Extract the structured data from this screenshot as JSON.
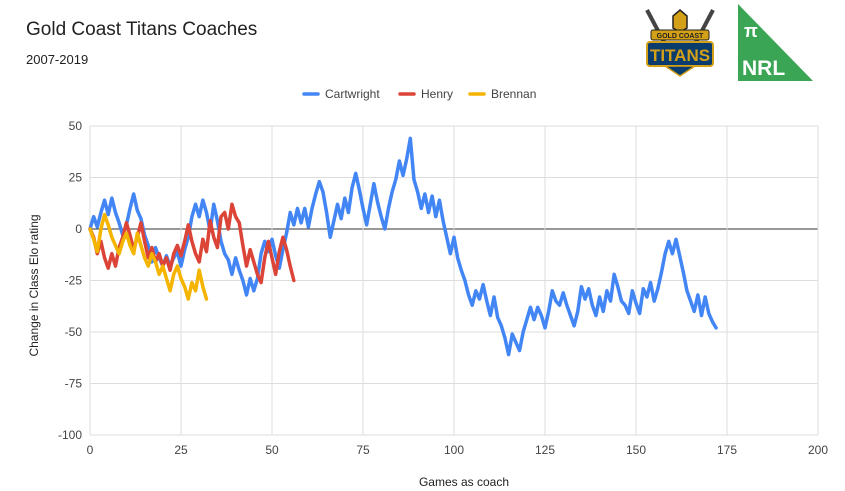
{
  "header": {
    "title": "Gold Coast Titans Coaches",
    "subtitle": "2007-2019"
  },
  "logos": {
    "titans_text_top": "GOLD COAST",
    "titans_text_main": "TITANS",
    "nrl_symbol": "π",
    "nrl_text": "NRL"
  },
  "colors": {
    "cartwright": "#4285f4",
    "henry": "#db4437",
    "brennan": "#f4b400",
    "nrl_green": "#3aa655"
  },
  "chart_data": {
    "type": "line",
    "title": "Gold Coast Titans Coaches",
    "subtitle": "2007-2019",
    "xlabel": "Games as coach",
    "ylabel": "Change in Class Elo rating",
    "xlim": [
      0,
      200
    ],
    "ylim": [
      -100,
      50
    ],
    "xticks": [
      0,
      25,
      50,
      75,
      100,
      125,
      150,
      175,
      200
    ],
    "yticks": [
      50,
      25,
      0,
      -25,
      -50,
      -75,
      -100
    ],
    "grid": true,
    "legend_position": "top",
    "series": [
      {
        "name": "Cartwright",
        "color": "#4285f4",
        "values": [
          0,
          6,
          1,
          8,
          14,
          7,
          15,
          8,
          3,
          -3,
          2,
          10,
          17,
          9,
          5,
          -3,
          -8,
          -16,
          -9,
          -14,
          -18,
          -13,
          -18,
          -14,
          -11,
          -18,
          -10,
          -4,
          6,
          12,
          6,
          14,
          8,
          -1,
          12,
          4,
          -6,
          -12,
          -15,
          -22,
          -14,
          -20,
          -25,
          -32,
          -24,
          -30,
          -24,
          -12,
          -6,
          -11,
          -5,
          -13,
          -19,
          -10,
          -2,
          8,
          2,
          10,
          3,
          10,
          1,
          10,
          17,
          23,
          18,
          8,
          -4,
          4,
          12,
          5,
          15,
          8,
          20,
          27,
          19,
          10,
          2,
          12,
          22,
          13,
          6,
          0,
          10,
          18,
          24,
          33,
          26,
          34,
          44,
          24,
          18,
          10,
          17,
          8,
          16,
          6,
          14,
          4,
          -4,
          -12,
          -4,
          -14,
          -20,
          -25,
          -32,
          -37,
          -30,
          -34,
          -27,
          -35,
          -42,
          -33,
          -43,
          -47,
          -53,
          -61,
          -51,
          -55,
          -59,
          -50,
          -44,
          -38,
          -44,
          -38,
          -42,
          -48,
          -40,
          -30,
          -35,
          -37,
          -31,
          -37,
          -42,
          -47,
          -40,
          -28,
          -34,
          -29,
          -37,
          -42,
          -33,
          -40,
          -30,
          -35,
          -22,
          -28,
          -35,
          -37,
          -41,
          -30,
          -36,
          -41,
          -29,
          -33,
          -26,
          -35,
          -29,
          -21,
          -12,
          -6,
          -12,
          -5,
          -13,
          -21,
          -30,
          -35,
          -40,
          -32,
          -42,
          -33,
          -41,
          -45,
          -48
        ]
      },
      {
        "name": "Henry",
        "color": "#db4437",
        "values": [
          0,
          -4,
          -12,
          -6,
          -14,
          -19,
          -12,
          -18,
          -9,
          -4,
          3,
          -3,
          -10,
          -4,
          3,
          -6,
          -14,
          -9,
          -16,
          -12,
          -18,
          -14,
          -20,
          -12,
          -8,
          -13,
          -6,
          2,
          -6,
          -12,
          -16,
          -5,
          -11,
          4,
          -4,
          -9,
          6,
          8,
          0,
          12,
          6,
          3,
          -8,
          -18,
          -10,
          -16,
          -22,
          -26,
          -14,
          -6,
          -14,
          -22,
          -11,
          -4,
          -10,
          -18,
          -25
        ]
      },
      {
        "name": "Brennan",
        "color": "#f4b400",
        "values": [
          0,
          -5,
          -11,
          0,
          7,
          2,
          -4,
          -8,
          -12,
          -6,
          -2,
          -8,
          -12,
          -2,
          -8,
          -14,
          -18,
          -12,
          -16,
          -22,
          -18,
          -24,
          -30,
          -22,
          -18,
          -24,
          -28,
          -34,
          -26,
          -30,
          -20,
          -28,
          -34
        ]
      }
    ]
  }
}
